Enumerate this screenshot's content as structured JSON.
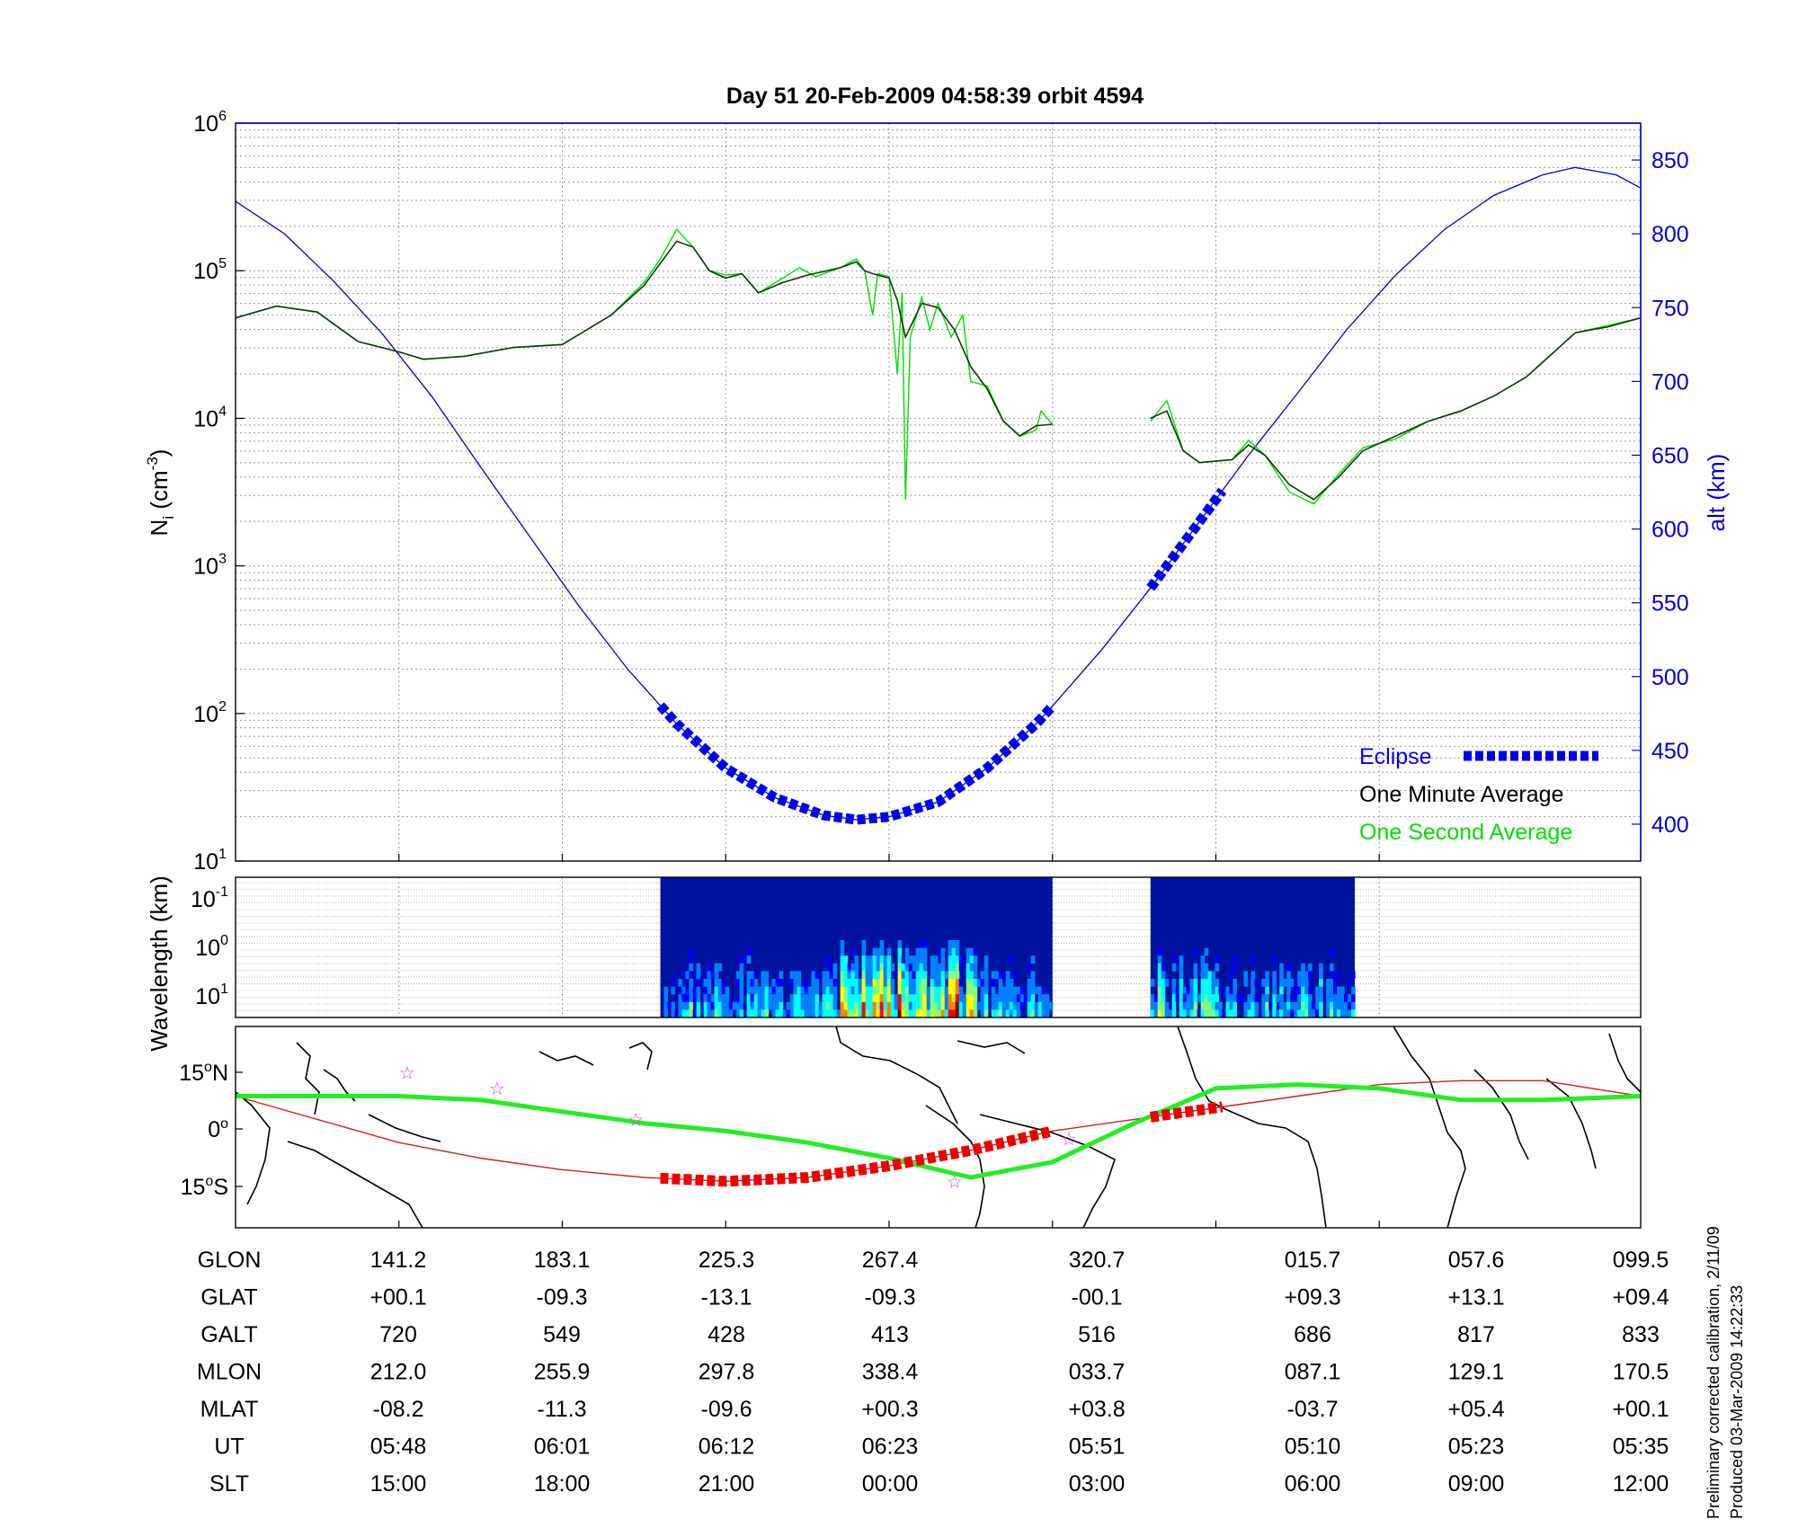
{
  "title": "Day 51   20-Feb-2009 04:58:39   orbit 4594",
  "side_note": [
    "Preliminary corrected calibration, 2/11/09",
    "Produced 03-Mar-2009 14:22:33"
  ],
  "colors": {
    "density_avg": "#0a3a0a",
    "density_sec": "#00dd00",
    "altitude": "#0000cc",
    "eclipse": "#0000ee",
    "track": "#22ee22",
    "track_thin": "#cc2222",
    "track_eclipse": "#ee0000",
    "star": "#cc44cc"
  },
  "chart_data": [
    {
      "type": "line",
      "title": "Day 51   20-Feb-2009 04:58:39   orbit 4594",
      "ylabel": "N_i (cm^-3)",
      "ylabel_parts": {
        "base": "N",
        "sub": "i",
        "unit_pre": " (cm",
        "unit_exp": "-3",
        "unit_post": ")"
      },
      "y2label": "alt (km)",
      "x_scale": "index 0-8 (SLT ticks)",
      "xlim": [
        0,
        8.6
      ],
      "ylim": [
        1,
        6
      ],
      "y_scale": "log",
      "y_ticks": [
        {
          "mant": "10",
          "exp": "1"
        },
        {
          "mant": "10",
          "exp": "2"
        },
        {
          "mant": "10",
          "exp": "3"
        },
        {
          "mant": "10",
          "exp": "4"
        },
        {
          "mant": "10",
          "exp": "5"
        },
        {
          "mant": "10",
          "exp": "6"
        }
      ],
      "y2lim": [
        375,
        875
      ],
      "y2_ticks": [
        "400",
        "450",
        "500",
        "550",
        "600",
        "650",
        "700",
        "750",
        "800",
        "850"
      ],
      "legend": {
        "position": "bottom-right",
        "entries": [
          "Eclipse",
          "One Minute Average",
          "One Second Average"
        ]
      },
      "series": [
        {
          "name": "One Minute Average",
          "log10_values": [
            [
              0,
              4.68
            ],
            [
              0.25,
              4.76
            ],
            [
              0.5,
              4.72
            ],
            [
              0.75,
              4.52
            ],
            [
              1,
              4.45
            ],
            [
              1.15,
              4.4
            ],
            [
              1.4,
              4.42
            ],
            [
              1.7,
              4.48
            ],
            [
              2,
              4.5
            ],
            [
              2.3,
              4.7
            ],
            [
              2.5,
              4.9
            ],
            [
              2.6,
              5.05
            ],
            [
              2.7,
              5.2
            ],
            [
              2.8,
              5.16
            ],
            [
              2.9,
              5.0
            ],
            [
              3.0,
              4.95
            ],
            [
              3.1,
              4.98
            ],
            [
              3.2,
              4.85
            ],
            [
              3.35,
              4.92
            ],
            [
              3.5,
              4.97
            ],
            [
              3.7,
              5.02
            ],
            [
              3.8,
              5.06
            ],
            [
              3.85,
              5.0
            ],
            [
              3.9,
              4.98
            ],
            [
              4.0,
              4.95
            ],
            [
              4.05,
              4.8
            ],
            [
              4.1,
              4.55
            ],
            [
              4.2,
              4.78
            ],
            [
              4.3,
              4.75
            ],
            [
              4.4,
              4.6
            ],
            [
              4.5,
              4.35
            ],
            [
              4.6,
              4.2
            ],
            [
              4.7,
              3.98
            ],
            [
              4.8,
              3.88
            ],
            [
              4.9,
              3.95
            ],
            [
              5.0,
              3.96
            ],
            null,
            [
              5.6,
              4.0
            ],
            [
              5.7,
              4.05
            ],
            [
              5.8,
              3.78
            ],
            [
              5.9,
              3.7
            ],
            [
              6.1,
              3.72
            ],
            [
              6.2,
              3.82
            ],
            [
              6.3,
              3.75
            ],
            [
              6.45,
              3.55
            ],
            [
              6.6,
              3.45
            ],
            [
              6.75,
              3.6
            ],
            [
              6.9,
              3.78
            ],
            [
              7.1,
              3.88
            ],
            [
              7.3,
              3.98
            ],
            [
              7.5,
              4.05
            ],
            [
              7.7,
              4.15
            ],
            [
              7.9,
              4.28
            ],
            [
              8.0,
              4.38
            ],
            [
              8.2,
              4.58
            ],
            [
              8.4,
              4.62
            ],
            [
              8.6,
              4.68
            ]
          ]
        },
        {
          "name": "One Second Average",
          "log10_values": [
            [
              0,
              4.68
            ],
            [
              0.25,
              4.76
            ],
            [
              0.5,
              4.72
            ],
            [
              0.75,
              4.52
            ],
            [
              1,
              4.45
            ],
            [
              1.15,
              4.4
            ],
            [
              1.4,
              4.42
            ],
            [
              1.7,
              4.48
            ],
            [
              2,
              4.5
            ],
            [
              2.3,
              4.7
            ],
            [
              2.5,
              4.92
            ],
            [
              2.6,
              5.08
            ],
            [
              2.7,
              5.28
            ],
            [
              2.8,
              5.16
            ],
            [
              2.9,
              5.0
            ],
            [
              3.0,
              4.97
            ],
            [
              3.1,
              4.98
            ],
            [
              3.2,
              4.85
            ],
            [
              3.35,
              4.95
            ],
            [
              3.45,
              5.02
            ],
            [
              3.55,
              4.96
            ],
            [
              3.7,
              5.02
            ],
            [
              3.8,
              5.08
            ],
            [
              3.85,
              5.0
            ],
            [
              3.9,
              4.7
            ],
            [
              3.93,
              4.98
            ],
            [
              4.0,
              4.96
            ],
            [
              4.05,
              4.3
            ],
            [
              4.08,
              4.85
            ],
            [
              4.1,
              3.45
            ],
            [
              4.13,
              4.55
            ],
            [
              4.2,
              4.82
            ],
            [
              4.25,
              4.6
            ],
            [
              4.3,
              4.78
            ],
            [
              4.38,
              4.55
            ],
            [
              4.45,
              4.7
            ],
            [
              4.5,
              4.25
            ],
            [
              4.6,
              4.22
            ],
            [
              4.7,
              3.98
            ],
            [
              4.8,
              3.88
            ],
            [
              4.9,
              3.92
            ],
            [
              4.93,
              4.05
            ],
            [
              5.0,
              3.96
            ],
            null,
            [
              5.6,
              3.98
            ],
            [
              5.7,
              4.12
            ],
            [
              5.8,
              3.78
            ],
            [
              5.9,
              3.7
            ],
            [
              6.1,
              3.72
            ],
            [
              6.2,
              3.85
            ],
            [
              6.3,
              3.75
            ],
            [
              6.45,
              3.5
            ],
            [
              6.6,
              3.42
            ],
            [
              6.75,
              3.62
            ],
            [
              6.9,
              3.8
            ],
            [
              7.1,
              3.86
            ],
            [
              7.3,
              3.98
            ],
            [
              7.5,
              4.05
            ],
            [
              7.7,
              4.15
            ],
            [
              7.9,
              4.28
            ],
            [
              8.0,
              4.38
            ],
            [
              8.2,
              4.58
            ],
            [
              8.4,
              4.63
            ],
            [
              8.6,
              4.68
            ]
          ]
        },
        {
          "name": "altitude",
          "axis": "y2",
          "values": [
            [
              0,
              822
            ],
            [
              0.3,
              800
            ],
            [
              0.6,
              768
            ],
            [
              0.9,
              732
            ],
            [
              1.2,
              690
            ],
            [
              1.5,
              642
            ],
            [
              1.8,
              595
            ],
            [
              2.1,
              548
            ],
            [
              2.4,
              505
            ],
            [
              2.7,
              468
            ],
            [
              3.0,
              438
            ],
            [
              3.3,
              418
            ],
            [
              3.6,
              406
            ],
            [
              3.8,
              403
            ],
            [
              4.0,
              405
            ],
            [
              4.3,
              415
            ],
            [
              4.6,
              438
            ],
            [
              4.9,
              468
            ],
            [
              5.0,
              480
            ],
            [
              5.3,
              518
            ],
            [
              5.6,
              560
            ],
            [
              5.9,
              605
            ],
            [
              6.2,
              650
            ],
            [
              6.5,
              692
            ],
            [
              6.8,
              735
            ],
            [
              7.1,
              772
            ],
            [
              7.4,
              803
            ],
            [
              7.7,
              826
            ],
            [
              8.0,
              840
            ],
            [
              8.2,
              845
            ],
            [
              8.45,
              840
            ],
            [
              8.6,
              831
            ]
          ]
        }
      ],
      "eclipse_segments": [
        [
          2.6,
          5.0
        ],
        [
          5.6,
          6.05
        ]
      ]
    },
    {
      "type": "heatmap",
      "ylabel": "Wavelength (km)",
      "y_ticks": [
        {
          "mant": "10",
          "exp": "-1"
        },
        {
          "mant": "10",
          "exp": "0"
        },
        {
          "mant": "10",
          "exp": "1"
        }
      ],
      "blocks": [
        [
          2.6,
          5.0
        ],
        [
          5.6,
          6.85
        ]
      ],
      "colormap": [
        "#00008f",
        "#0000ff",
        "#0080ff",
        "#00ffff",
        "#80ff80",
        "#ffff00",
        "#ff8000",
        "#ff0000",
        "#800000"
      ]
    },
    {
      "type": "map",
      "y_ticks": [
        {
          "value": "15",
          "suffix": "N"
        },
        {
          "value": "0",
          "suffix": ""
        },
        {
          "value": "15",
          "suffix": "S"
        }
      ],
      "ylim": [
        -25,
        27
      ],
      "track": [
        [
          0,
          9
        ],
        [
          0.5,
          9
        ],
        [
          1.0,
          9
        ],
        [
          1.5,
          8
        ],
        [
          2.0,
          5
        ],
        [
          2.5,
          2
        ],
        [
          3.0,
          0
        ],
        [
          3.5,
          -3
        ],
        [
          4.0,
          -7
        ],
        [
          4.5,
          -12
        ],
        [
          5.0,
          -8
        ],
        [
          5.5,
          2
        ],
        [
          6.0,
          11
        ],
        [
          6.5,
          12
        ],
        [
          7.0,
          11
        ],
        [
          7.5,
          8
        ],
        [
          8.0,
          8
        ],
        [
          8.6,
          9
        ]
      ],
      "track_thin": [
        [
          0,
          9
        ],
        [
          0.5,
          3
        ],
        [
          1.0,
          -3
        ],
        [
          1.5,
          -7
        ],
        [
          2.0,
          -10
        ],
        [
          2.5,
          -12
        ],
        [
          3.0,
          -13
        ],
        [
          3.5,
          -12
        ],
        [
          4.0,
          -9
        ],
        [
          4.5,
          -5
        ],
        [
          5.0,
          0
        ],
        [
          5.5,
          3
        ],
        [
          6.0,
          6
        ],
        [
          6.5,
          9
        ],
        [
          7.0,
          12
        ],
        [
          7.5,
          13
        ],
        [
          8.0,
          13
        ],
        [
          8.6,
          9
        ]
      ],
      "eclipse_segments": [
        [
          2.6,
          5.0
        ],
        [
          5.6,
          6.05
        ]
      ],
      "stars": [
        [
          1.05,
          15
        ],
        [
          1.6,
          11
        ],
        [
          2.45,
          3
        ],
        [
          4.4,
          -13
        ],
        [
          5.1,
          -2
        ]
      ]
    }
  ],
  "table": {
    "row_labels": [
      "GLON",
      "GLAT",
      "GALT",
      "MLON",
      "MLAT",
      "UT",
      "SLT"
    ],
    "columns": [
      [
        "141.2",
        "+00.1",
        "720",
        "212.0",
        "-08.2",
        "05:48",
        "15:00"
      ],
      [
        "183.1",
        "-09.3",
        "549",
        "255.9",
        "-11.3",
        "06:01",
        "18:00"
      ],
      [
        "225.3",
        "-13.1",
        "428",
        "297.8",
        "-09.6",
        "06:12",
        "21:00"
      ],
      [
        "267.4",
        "-09.3",
        "413",
        "338.4",
        "+00.3",
        "06:23",
        "00:00"
      ],
      [
        "320.7",
        "-00.1",
        "516",
        "033.7",
        "+03.8",
        "05:51",
        "03:00"
      ],
      [
        "015.7",
        "+09.3",
        "686",
        "087.1",
        "-03.7",
        "05:10",
        "06:00"
      ],
      [
        "057.6",
        "+13.1",
        "817",
        "129.1",
        "+05.4",
        "05:23",
        "09:00"
      ],
      [
        "099.5",
        "+09.4",
        "833",
        "170.5",
        "+00.1",
        "05:35",
        "12:00"
      ]
    ]
  }
}
